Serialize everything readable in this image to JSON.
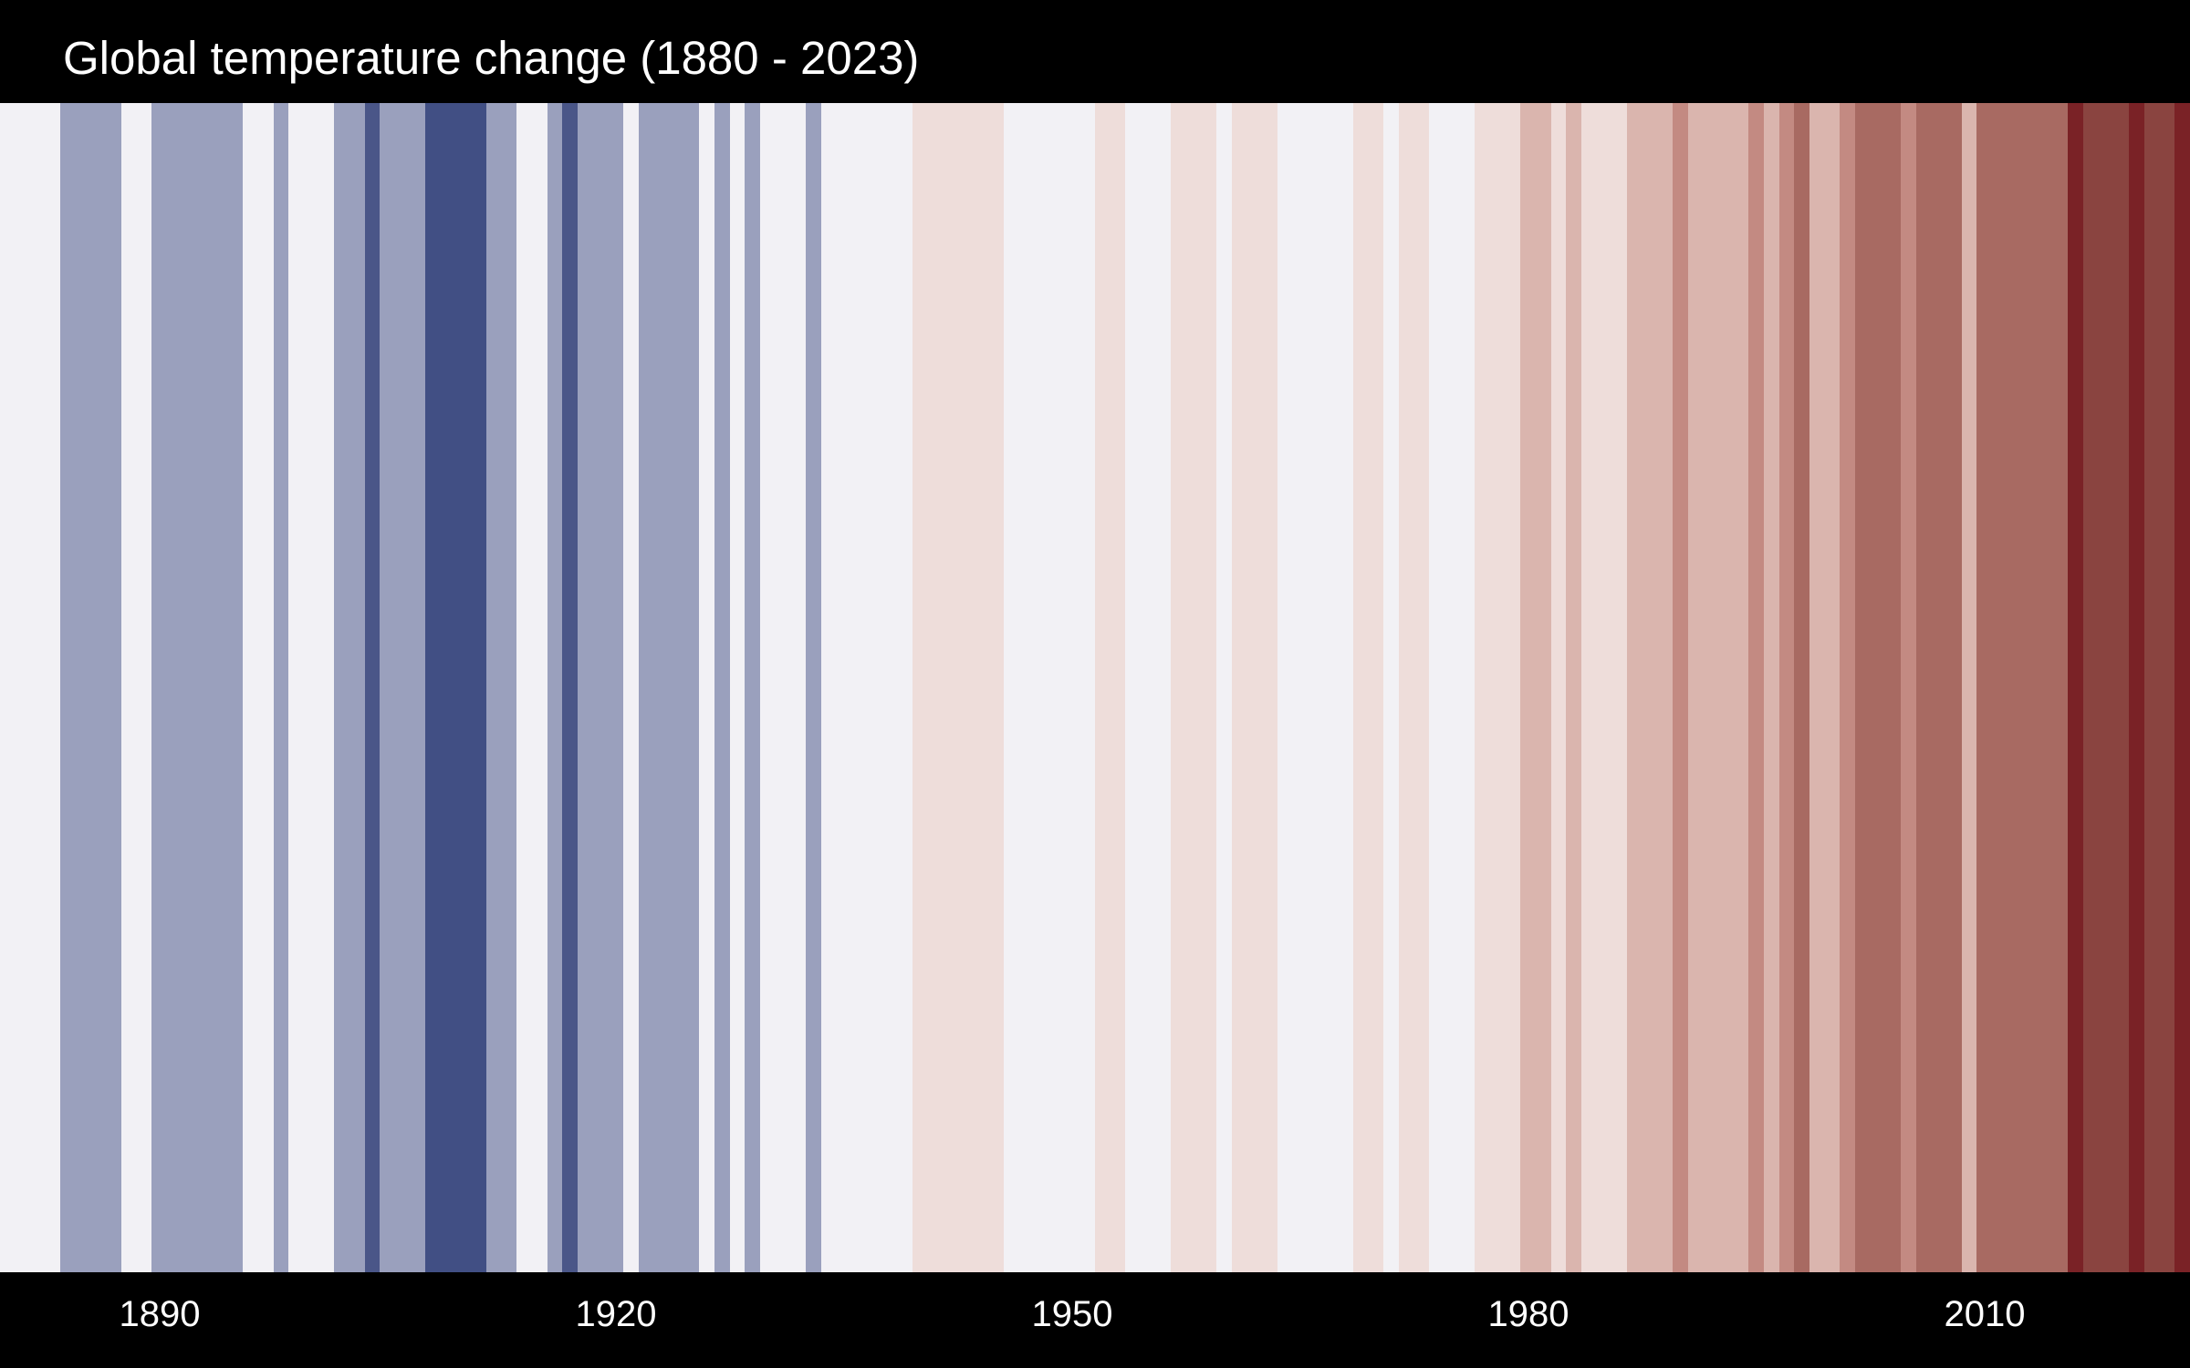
{
  "chart_data": {
    "type": "heatmap",
    "title": "Global temperature change (1880 - 2023)",
    "xlabel": "",
    "ylabel": "",
    "grid": false,
    "legend": "none",
    "x_tick_labels": [
      "1890",
      "1920",
      "1950",
      "1980",
      "2010"
    ],
    "colors": {
      "background": "#000000",
      "text": "#ffffff",
      "neutral": "#f2f1f5",
      "blue_light": "#9aa0bd",
      "blue_mid": "#4a5688",
      "blue_dark": "#414f84",
      "red_1": "#eeddda",
      "red_2": "#dab5ae",
      "red_3": "#c38a82",
      "red_4": "#a86a62",
      "red_5": "#8a4440",
      "red_6": "#7a2226"
    },
    "years": [
      1880,
      1881,
      1882,
      1883,
      1884,
      1885,
      1886,
      1887,
      1888,
      1889,
      1890,
      1891,
      1892,
      1893,
      1894,
      1895,
      1896,
      1897,
      1898,
      1899,
      1900,
      1901,
      1902,
      1903,
      1904,
      1905,
      1906,
      1907,
      1908,
      1909,
      1910,
      1911,
      1912,
      1913,
      1914,
      1915,
      1916,
      1917,
      1918,
      1919,
      1920,
      1921,
      1922,
      1923,
      1924,
      1925,
      1926,
      1927,
      1928,
      1929,
      1930,
      1931,
      1932,
      1933,
      1934,
      1935,
      1936,
      1937,
      1938,
      1939,
      1940,
      1941,
      1942,
      1943,
      1944,
      1945,
      1946,
      1947,
      1948,
      1949,
      1950,
      1951,
      1952,
      1953,
      1954,
      1955,
      1956,
      1957,
      1958,
      1959,
      1960,
      1961,
      1962,
      1963,
      1964,
      1965,
      1966,
      1967,
      1968,
      1969,
      1970,
      1971,
      1972,
      1973,
      1974,
      1975,
      1976,
      1977,
      1978,
      1979,
      1980,
      1981,
      1982,
      1983,
      1984,
      1985,
      1986,
      1987,
      1988,
      1989,
      1990,
      1991,
      1992,
      1993,
      1994,
      1995,
      1996,
      1997,
      1998,
      1999,
      2000,
      2001,
      2002,
      2003,
      2004,
      2005,
      2006,
      2007,
      2008,
      2009,
      2010,
      2011,
      2012,
      2013,
      2014,
      2015,
      2016,
      2017,
      2018,
      2019,
      2020,
      2021,
      2022,
      2023
    ],
    "stripe_colors": [
      "#f2f1f5",
      "#f2f1f5",
      "#f2f1f5",
      "#f2f1f5",
      "#9aa0bd",
      "#9aa0bd",
      "#9aa0bd",
      "#9aa0bd",
      "#f2f1f5",
      "#f2f1f5",
      "#9aa0bd",
      "#9aa0bd",
      "#9aa0bd",
      "#9aa0bd",
      "#9aa0bd",
      "#9aa0bd",
      "#f2f1f5",
      "#f2f1f5",
      "#9aa0bd",
      "#f2f1f5",
      "#f2f1f5",
      "#f2f1f5",
      "#9aa0bd",
      "#9aa0bd",
      "#4a5688",
      "#9aa0bd",
      "#9aa0bd",
      "#9aa0bd",
      "#414f84",
      "#414f84",
      "#414f84",
      "#414f84",
      "#9aa0bd",
      "#9aa0bd",
      "#f2f1f5",
      "#f2f1f5",
      "#9aa0bd",
      "#4a5688",
      "#9aa0bd",
      "#9aa0bd",
      "#9aa0bd",
      "#f2f1f5",
      "#9aa0bd",
      "#9aa0bd",
      "#9aa0bd",
      "#9aa0bd",
      "#f2f1f5",
      "#9aa0bd",
      "#f2f1f5",
      "#9aa0bd",
      "#f2f1f5",
      "#f2f1f5",
      "#f2f1f5",
      "#9aa0bd",
      "#f2f1f5",
      "#f2f1f5",
      "#f2f1f5",
      "#f2f1f5",
      "#f2f1f5",
      "#f2f1f5",
      "#eeddda",
      "#eeddda",
      "#eeddda",
      "#eeddda",
      "#eeddda",
      "#eeddda",
      "#f2f1f5",
      "#f2f1f5",
      "#f2f1f5",
      "#f2f1f5",
      "#f2f1f5",
      "#f2f1f5",
      "#eeddda",
      "#eeddda",
      "#f2f1f5",
      "#f2f1f5",
      "#f2f1f5",
      "#eeddda",
      "#eeddda",
      "#eeddda",
      "#f2f1f5",
      "#eeddda",
      "#eeddda",
      "#eeddda",
      "#f2f1f5",
      "#f2f1f5",
      "#f2f1f5",
      "#f2f1f5",
      "#f2f1f5",
      "#eeddda",
      "#eeddda",
      "#f2f1f5",
      "#eeddda",
      "#eeddda",
      "#f2f1f5",
      "#f2f1f5",
      "#f2f1f5",
      "#eeddda",
      "#eeddda",
      "#eeddda",
      "#dab5ae",
      "#dab5ae",
      "#eeddda",
      "#dab5ae",
      "#eeddda",
      "#eeddda",
      "#eeddda",
      "#dab5ae",
      "#dab5ae",
      "#dab5ae",
      "#c38a82",
      "#dab5ae",
      "#dab5ae",
      "#dab5ae",
      "#dab5ae",
      "#c38a82",
      "#dab5ae",
      "#c38a82",
      "#a86a62",
      "#dab5ae",
      "#dab5ae",
      "#c38a82",
      "#a86a62",
      "#a86a62",
      "#a86a62",
      "#c38a82",
      "#a86a62",
      "#a86a62",
      "#a86a62",
      "#dab5ae",
      "#a86a62",
      "#a86a62",
      "#a86a62",
      "#a86a62",
      "#a86a62",
      "#a86a62",
      "#7a2226",
      "#8a4440",
      "#8a4440",
      "#8a4440",
      "#7a2226",
      "#8a4440",
      "#8a4440",
      "#7a2226"
    ]
  }
}
